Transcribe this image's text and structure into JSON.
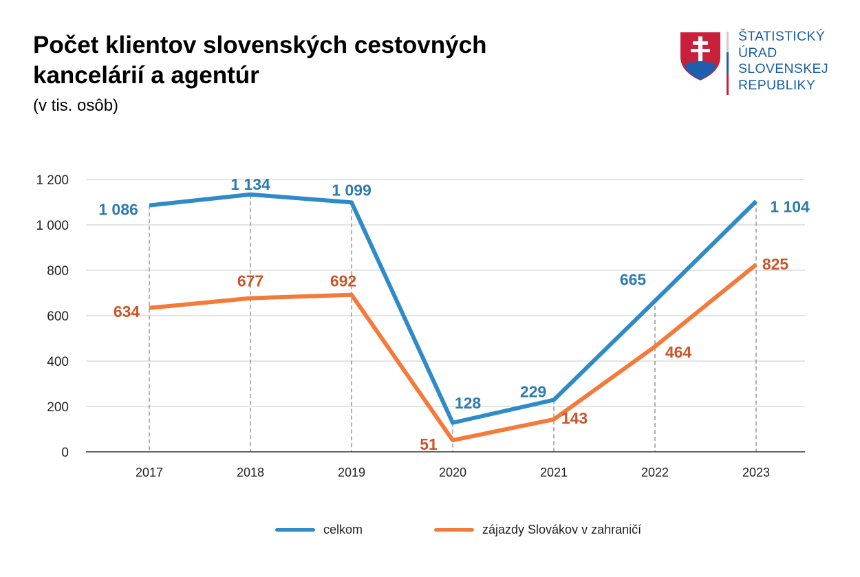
{
  "logo": {
    "lines": [
      "ŠTATISTICKÝ",
      "ÚRAD",
      "SLOVENSKEJ",
      "REPUBLIKY"
    ]
  },
  "chart_data": {
    "type": "line",
    "title": "Počet klientov slovenských cestovných kancelárií a agentúr",
    "subtitle": "(v tis. osôb)",
    "categories": [
      "2017",
      "2018",
      "2019",
      "2020",
      "2021",
      "2022",
      "2023"
    ],
    "ylim": [
      0,
      1200
    ],
    "yticks": [
      0,
      200,
      400,
      600,
      800,
      1000,
      1200
    ],
    "ytick_labels": [
      "0",
      "200",
      "400",
      "600",
      "800",
      "1 000",
      "1 200"
    ],
    "grid": true,
    "legend_position": "bottom",
    "series": [
      {
        "name": "celkom",
        "color": "#2e8bc8",
        "label_color": "#2e7bb0",
        "values": [
          1086,
          1134,
          1099,
          128,
          229,
          665,
          1104
        ],
        "labels": [
          "1 086",
          "1 134",
          "1 099",
          "128",
          "229",
          "665",
          "1 104"
        ]
      },
      {
        "name": "zájazdy Slovákov v zahraničí",
        "color": "#f47a3a",
        "label_color": "#c9552a",
        "values": [
          634,
          677,
          692,
          51,
          143,
          464,
          825
        ],
        "labels": [
          "634",
          "677",
          "692",
          "51",
          "143",
          "464",
          "825"
        ]
      }
    ]
  }
}
